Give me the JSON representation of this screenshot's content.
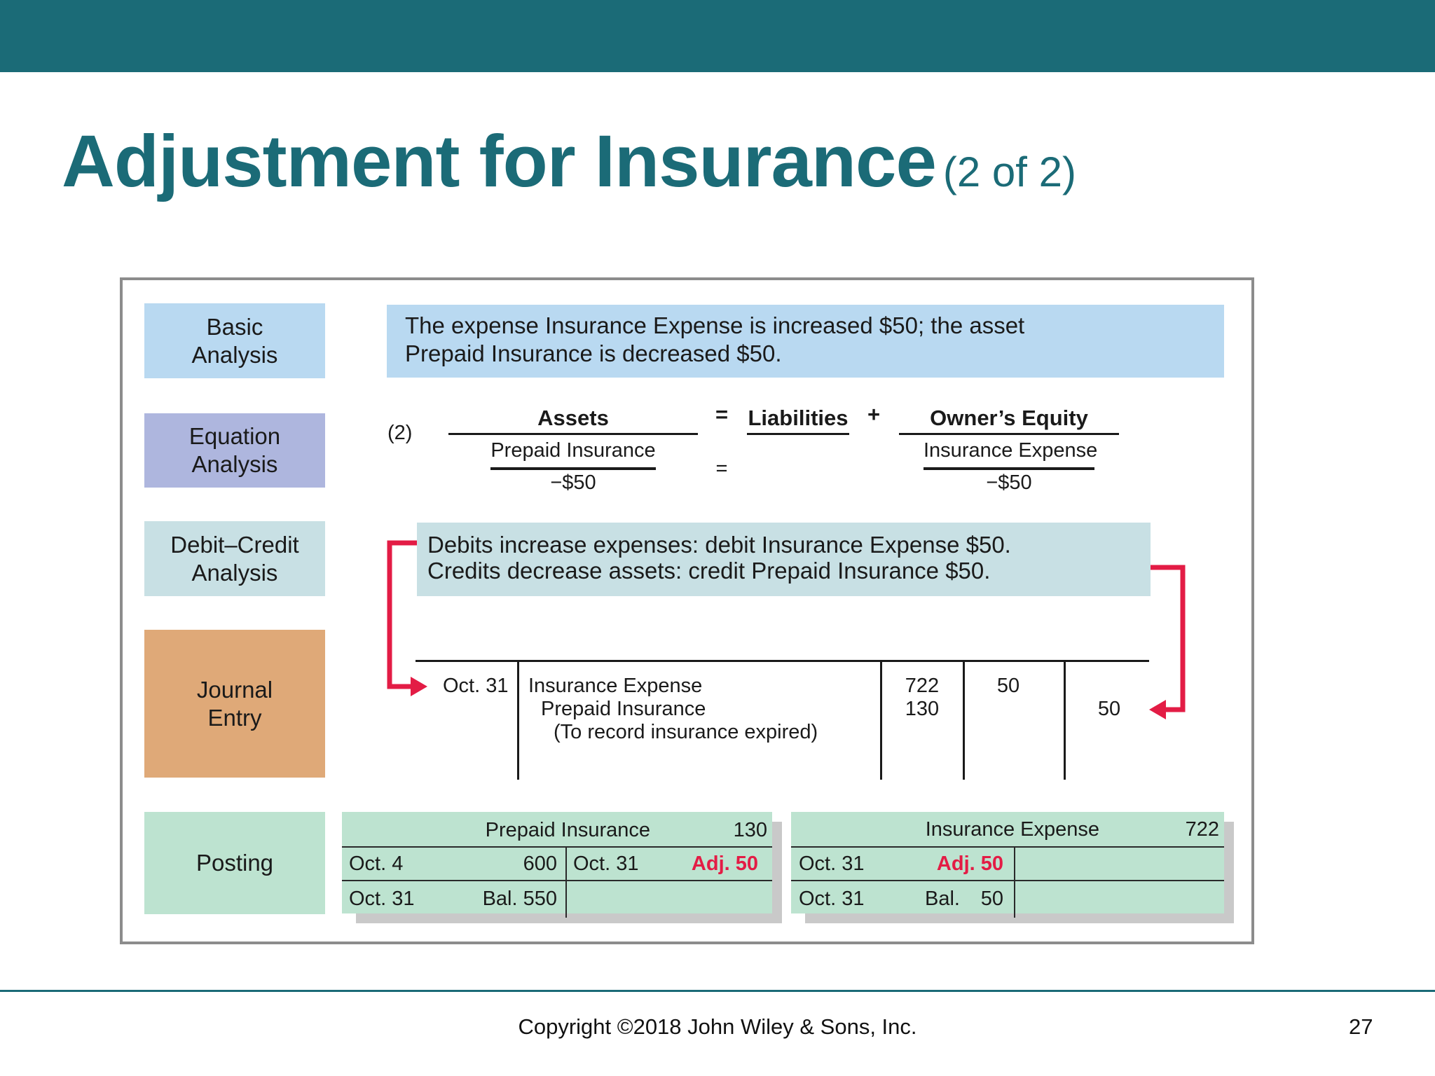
{
  "title": {
    "main": "Adjustment for Insurance",
    "sub": "(2 of 2)"
  },
  "labels": {
    "basic": [
      "Basic",
      "Analysis"
    ],
    "equation": [
      "Equation",
      "Analysis"
    ],
    "debit_credit": [
      "Debit–Credit",
      "Analysis"
    ],
    "journal": [
      "Journal",
      "Entry"
    ],
    "posting": "Posting"
  },
  "label_colors": {
    "basic": "#b9d9f1",
    "equation": "#aeb6de",
    "debit_credit": "#c8e0e4",
    "journal": "#dfa978",
    "posting": "#bde3d0"
  },
  "basic_analysis": [
    "The expense Insurance Expense is increased $50; the asset",
    "Prepaid Insurance is decreased $50."
  ],
  "equation": {
    "number": "(2)",
    "assets_header": "Assets",
    "equals": "=",
    "liabilities_header": "Liabilities",
    "plus": "+",
    "equity_header": "Owner’s Equity",
    "assets_account": "Prepaid Insurance",
    "assets_amount": "−$50",
    "equity_account": "Insurance Expense",
    "equity_amount": "−$50"
  },
  "debit_credit_analysis": [
    "Debits increase expenses: debit Insurance Expense $50.",
    "Credits decrease assets: credit Prepaid Insurance $50."
  ],
  "journal_entry": {
    "date": "Oct. 31",
    "debit_account": "Insurance Expense",
    "credit_account": "Prepaid Insurance",
    "explanation": "(To record insurance expired)",
    "debit_ref": "722",
    "credit_ref": "130",
    "debit_amount": "50",
    "credit_amount": "50"
  },
  "posting": {
    "prepaid": {
      "name": "Prepaid Insurance",
      "number": "130",
      "row1_date": "Oct.  4",
      "row1_amount": "600",
      "row1_cr_date": "Oct. 31",
      "row1_cr_amount": "Adj. 50",
      "row2_date": "Oct. 31",
      "row2_amount": "Bal. 550"
    },
    "expense": {
      "name": "Insurance Expense",
      "number": "722",
      "row1_date": "Oct. 31",
      "row1_amount": "Adj. 50",
      "row2_date": "Oct. 31",
      "row2_label": "Bal.",
      "row2_amount": "50"
    }
  },
  "footer": {
    "copyright": "Copyright ©2018 John Wiley & Sons, Inc.",
    "page": "27"
  },
  "colors": {
    "accent": "#1b6b77",
    "arrow": "#e31c45"
  }
}
